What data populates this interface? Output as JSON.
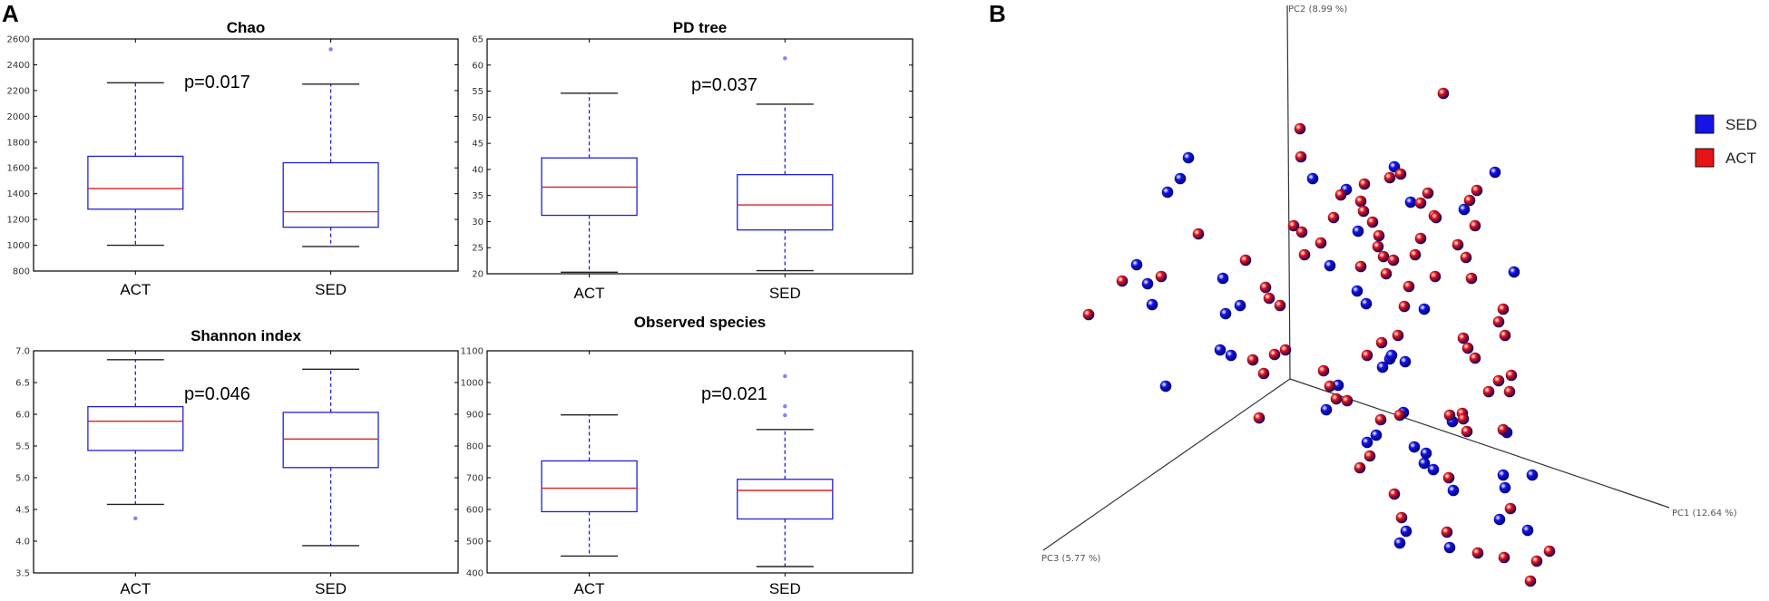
{
  "panel_labels": {
    "a": "A",
    "b": "B"
  },
  "chart_data": [
    {
      "type": "box",
      "title": "Chao",
      "p_value": "p=0.017",
      "categories": [
        "ACT",
        "SED"
      ],
      "ylim": [
        800,
        2600
      ],
      "yticks": [
        800,
        1000,
        1200,
        1400,
        1600,
        1800,
        2000,
        2200,
        2400,
        2600
      ],
      "boxes": [
        {
          "name": "ACT",
          "min": 1000,
          "q1": 1280,
          "median": 1440,
          "q3": 1690,
          "max": 2260,
          "outliers": []
        },
        {
          "name": "SED",
          "min": 990,
          "q1": 1140,
          "median": 1260,
          "q3": 1640,
          "max": 2250,
          "outliers": [
            2520
          ]
        }
      ]
    },
    {
      "type": "box",
      "title": "PD tree",
      "p_value": "p=0.037",
      "categories": [
        "ACT",
        "SED"
      ],
      "ylim": [
        20,
        65
      ],
      "yticks": [
        20,
        25,
        30,
        35,
        40,
        45,
        50,
        55,
        60,
        65
      ],
      "boxes": [
        {
          "name": "ACT",
          "min": 20.3,
          "q1": 31.2,
          "median": 36.6,
          "q3": 42.2,
          "max": 54.6,
          "outliers": []
        },
        {
          "name": "SED",
          "min": 20.6,
          "q1": 28.4,
          "median": 33.2,
          "q3": 39.0,
          "max": 52.5,
          "outliers": [
            61.3
          ]
        }
      ]
    },
    {
      "type": "box",
      "title": "Shannon index",
      "p_value": "p=0.046",
      "categories": [
        "ACT",
        "SED"
      ],
      "ylim": [
        3.5,
        7.0
      ],
      "yticks": [
        3.5,
        4.0,
        4.5,
        5.0,
        5.5,
        6.0,
        6.5,
        7.0
      ],
      "boxes": [
        {
          "name": "ACT",
          "min": 4.58,
          "q1": 5.43,
          "median": 5.89,
          "q3": 6.12,
          "max": 6.86,
          "outliers": [
            4.36
          ]
        },
        {
          "name": "SED",
          "min": 3.93,
          "q1": 5.16,
          "median": 5.61,
          "q3": 6.03,
          "max": 6.71,
          "outliers": []
        }
      ]
    },
    {
      "type": "box",
      "title": "Observed species",
      "p_value": "p=0.021",
      "categories": [
        "ACT",
        "SED"
      ],
      "ylim": [
        400,
        1100
      ],
      "yticks": [
        400,
        500,
        600,
        700,
        800,
        900,
        1000,
        1100
      ],
      "boxes": [
        {
          "name": "ACT",
          "min": 453,
          "q1": 593,
          "median": 667,
          "q3": 753,
          "max": 898,
          "outliers": []
        },
        {
          "name": "SED",
          "min": 420,
          "q1": 570,
          "median": 660,
          "q3": 695,
          "max": 852,
          "outliers": [
            897,
            925,
            1020
          ]
        }
      ]
    },
    {
      "type": "scatter3d",
      "axes": [
        "PC1 (12.64 %)",
        "PC2 (8.99 %)",
        "PC3 (5.77 %)"
      ],
      "legend": [
        {
          "label": "SED",
          "color": "#1414e6"
        },
        {
          "label": "ACT",
          "color": "#e61414"
        }
      ],
      "series": [
        {
          "name": "SED",
          "points_projected": [
            [
              1310,
              174
            ],
            [
              1301,
              197
            ],
            [
              1287,
              212
            ],
            [
              1253,
              292
            ],
            [
              1265,
              313
            ],
            [
              1348,
              307
            ],
            [
              1270,
              336
            ],
            [
              1285,
              426
            ],
            [
              1367,
              337
            ],
            [
              1351,
              346
            ],
            [
              1345,
              386
            ],
            [
              1357,
              392
            ],
            [
              1447,
              197
            ],
            [
              1484,
              209
            ],
            [
              1497,
              255
            ],
            [
              1466,
              293
            ],
            [
              1496,
              321
            ],
            [
              1506,
              335
            ],
            [
              1537,
              184
            ],
            [
              1555,
              223
            ],
            [
              1475,
              425
            ],
            [
              1462,
              452
            ],
            [
              1547,
              455
            ],
            [
              1517,
              480
            ],
            [
              1507,
              488
            ],
            [
              1559,
              493
            ],
            [
              1570,
              511
            ],
            [
              1601,
              465
            ],
            [
              1657,
              524
            ],
            [
              1659,
              538
            ],
            [
              1689,
              524
            ],
            [
              1684,
              585
            ],
            [
              1580,
              518
            ],
            [
              1602,
              541
            ],
            [
              1653,
              573
            ],
            [
              1550,
              586
            ],
            [
              1543,
              599
            ],
            [
              1598,
              604
            ],
            [
              1572,
              500
            ],
            [
              1532,
              396
            ],
            [
              1549,
              399
            ],
            [
              1524,
              405
            ],
            [
              1534,
              392
            ],
            [
              1570,
              341
            ],
            [
              1614,
              231
            ],
            [
              1648,
              190
            ],
            [
              1669,
              300
            ],
            [
              1661,
              477
            ]
          ]
        },
        {
          "name": "ACT",
          "points_projected": [
            [
              1200,
              347
            ],
            [
              1237,
              310
            ],
            [
              1280,
              305
            ],
            [
              1321,
              258
            ],
            [
              1373,
              287
            ],
            [
              1395,
              317
            ],
            [
              1399,
              329
            ],
            [
              1411,
              337
            ],
            [
              1405,
              391
            ],
            [
              1381,
              397
            ],
            [
              1393,
              412
            ],
            [
              1388,
              461
            ],
            [
              1417,
              386
            ],
            [
              1433,
              142
            ],
            [
              1434,
              173
            ],
            [
              1426,
              249
            ],
            [
              1435,
              256
            ],
            [
              1438,
              281
            ],
            [
              1456,
              268
            ],
            [
              1470,
              240
            ],
            [
              1478,
              215
            ],
            [
              1500,
              222
            ],
            [
              1503,
              233
            ],
            [
              1513,
              245
            ],
            [
              1519,
              272
            ],
            [
              1525,
              283
            ],
            [
              1560,
              281
            ],
            [
              1566,
              263
            ],
            [
              1581,
              238
            ],
            [
              1591,
              103
            ],
            [
              1607,
              270
            ],
            [
              1616,
              284
            ],
            [
              1626,
              249
            ],
            [
              1620,
              221
            ],
            [
              1628,
              210
            ],
            [
              1583,
              240
            ],
            [
              1574,
              213
            ],
            [
              1544,
              192
            ],
            [
              1520,
              260
            ],
            [
              1500,
              294
            ],
            [
              1528,
              302
            ],
            [
              1536,
              287
            ],
            [
              1553,
              316
            ],
            [
              1548,
              338
            ],
            [
              1541,
              370
            ],
            [
              1523,
              378
            ],
            [
              1507,
              392
            ],
            [
              1485,
              442
            ],
            [
              1459,
              409
            ],
            [
              1466,
              426
            ],
            [
              1473,
              440
            ],
            [
              1522,
              463
            ],
            [
              1543,
              458
            ],
            [
              1510,
              503
            ],
            [
              1499,
              516
            ],
            [
              1537,
              545
            ],
            [
              1545,
              571
            ],
            [
              1622,
              307
            ],
            [
              1613,
              373
            ],
            [
              1618,
              384
            ],
            [
              1626,
              395
            ],
            [
              1657,
              341
            ],
            [
              1652,
              355
            ],
            [
              1659,
              370
            ],
            [
              1666,
              414
            ],
            [
              1664,
              432
            ],
            [
              1612,
              456
            ],
            [
              1617,
              476
            ],
            [
              1597,
              527
            ],
            [
              1665,
              561
            ],
            [
              1694,
              619
            ],
            [
              1708,
              608
            ],
            [
              1687,
              641
            ],
            [
              1658,
              615
            ],
            [
              1629,
              610
            ],
            [
              1595,
              587
            ],
            [
              1613,
              462
            ],
            [
              1582,
              305
            ],
            [
              1566,
              224
            ],
            [
              1532,
              196
            ],
            [
              1504,
              203
            ],
            [
              1598,
              458
            ],
            [
              1652,
              420
            ],
            [
              1657,
              474
            ],
            [
              1641,
              432
            ]
          ]
        }
      ]
    }
  ]
}
